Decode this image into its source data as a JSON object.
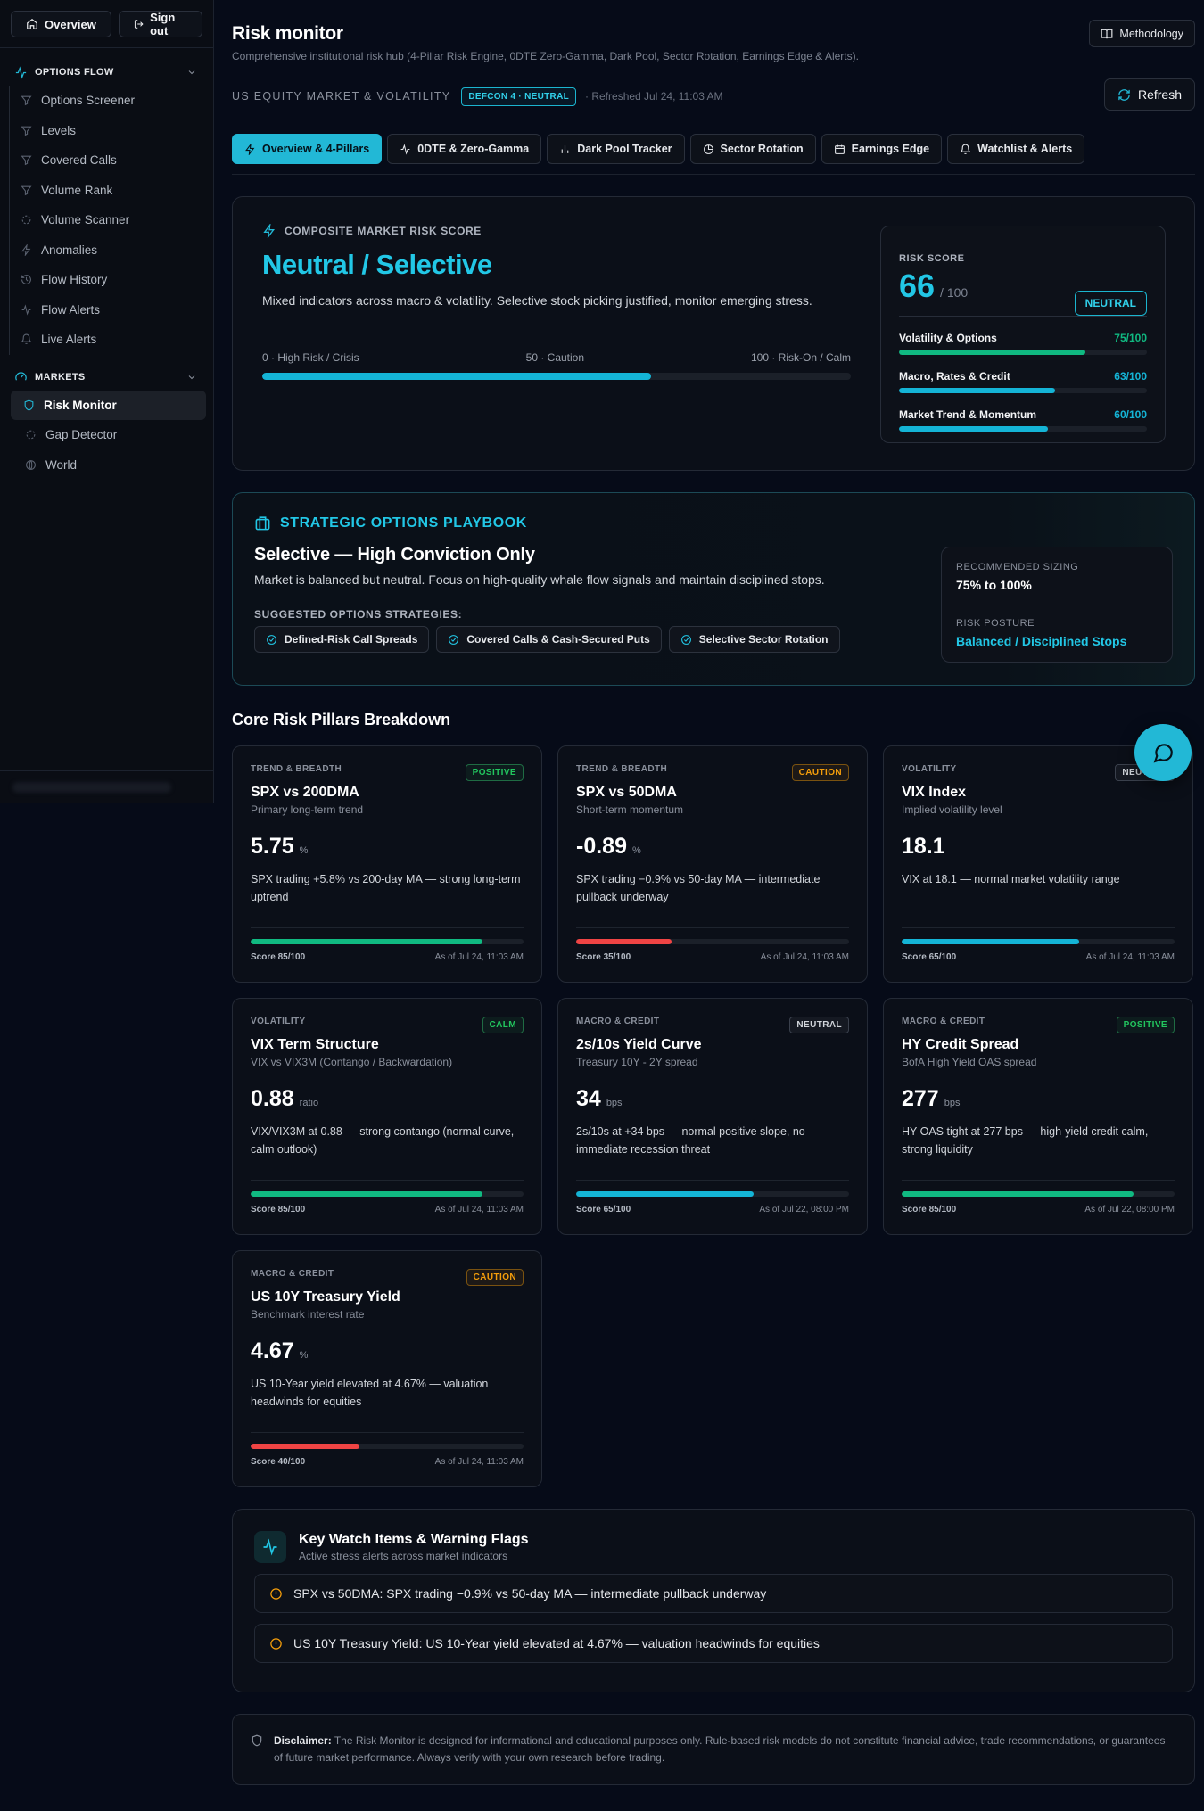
{
  "sidebar": {
    "overview_label": "Overview",
    "signout_label": "Sign out",
    "options_flow": {
      "title": "OPTIONS FLOW",
      "items": [
        "Options Screener",
        "Levels",
        "Covered Calls",
        "Volume Rank",
        "Volume Scanner",
        "Anomalies",
        "Flow History",
        "Flow Alerts",
        "Live Alerts"
      ]
    },
    "markets": {
      "title": "MARKETS",
      "items": [
        "Risk Monitor",
        "Gap Detector",
        "World"
      ],
      "active": "Risk Monitor"
    }
  },
  "header": {
    "title": "Risk monitor",
    "subtitle": "Comprehensive institutional risk hub (4-Pillar Risk Engine, 0DTE Zero-Gamma, Dark Pool, Sector Rotation, Earnings Edge & Alerts).",
    "methodology_label": "Methodology"
  },
  "status": {
    "market_label": "US EQUITY MARKET & VOLATILITY",
    "defcon": "DEFCON 4 · NEUTRAL",
    "refreshed": "· Refreshed Jul 24, 11:03 AM",
    "refresh_label": "Refresh"
  },
  "tabs": [
    {
      "label": "Overview & 4-Pillars",
      "icon": "zap-icon",
      "active": true
    },
    {
      "label": "0DTE & Zero-Gamma",
      "icon": "activity-icon",
      "active": false
    },
    {
      "label": "Dark Pool Tracker",
      "icon": "bar-chart-icon",
      "active": false
    },
    {
      "label": "Sector Rotation",
      "icon": "pie-chart-icon",
      "active": false
    },
    {
      "label": "Earnings Edge",
      "icon": "calendar-icon",
      "active": false
    },
    {
      "label": "Watchlist & Alerts",
      "icon": "bell-icon",
      "active": false
    }
  ],
  "composite": {
    "label": "COMPOSITE MARKET RISK SCORE",
    "title": "Neutral / Selective",
    "description": "Mixed indicators across macro & volatility. Selective stock picking justified, monitor emerging stress.",
    "scale_low": "0 · High Risk / Crisis",
    "scale_mid": "50 · Caution",
    "scale_high": "100 · Risk-On / Calm",
    "score_fraction": 0.66,
    "accent": "#14b4d6",
    "risk_score_label": "RISK SCORE",
    "score": "66",
    "score_denom": "/ 100",
    "badge": "NEUTRAL",
    "subscores": [
      {
        "label": "Volatility & Options",
        "value": "75/100",
        "fraction": 0.75,
        "color": "#10b981"
      },
      {
        "label": "Macro, Rates & Credit",
        "value": "63/100",
        "fraction": 0.63,
        "color": "#14b4d6"
      },
      {
        "label": "Market Trend & Momentum",
        "value": "60/100",
        "fraction": 0.6,
        "color": "#14b4d6"
      }
    ]
  },
  "playbook": {
    "label": "STRATEGIC OPTIONS PLAYBOOK",
    "title": "Selective — High Conviction Only",
    "description": "Market is balanced but neutral. Focus on high-quality whale flow signals and maintain disciplined stops.",
    "strategies_label": "SUGGESTED OPTIONS STRATEGIES:",
    "strategies": [
      "Defined-Risk Call Spreads",
      "Covered Calls & Cash-Secured Puts",
      "Selective Sector Rotation"
    ],
    "sizing_label": "RECOMMENDED SIZING",
    "sizing_value": "75% to 100%",
    "posture_label": "RISK POSTURE",
    "posture_value": "Balanced / Disciplined Stops"
  },
  "pillars": {
    "title": "Core Risk Pillars Breakdown",
    "cards": [
      {
        "category": "TREND & BREADTH",
        "badge": "POSITIVE",
        "badge_type": "positive",
        "title": "SPX vs 200DMA",
        "subtitle": "Primary long-term trend",
        "value": "5.75",
        "unit": "%",
        "description": "SPX trading +5.8% vs 200-day MA — strong long-term uptrend",
        "score_text": "Score 85/100",
        "score": 0.85,
        "color": "#10b981",
        "asof": "As of Jul 24, 11:03 AM"
      },
      {
        "category": "TREND & BREADTH",
        "badge": "CAUTION",
        "badge_type": "caution",
        "title": "SPX vs 50DMA",
        "subtitle": "Short-term momentum",
        "value": "-0.89",
        "unit": "%",
        "description": "SPX trading −0.9% vs 50-day MA — intermediate pullback underway",
        "score_text": "Score 35/100",
        "score": 0.35,
        "color": "#ef4444",
        "asof": "As of Jul 24, 11:03 AM"
      },
      {
        "category": "VOLATILITY",
        "badge": "NEUTRAL",
        "badge_type": "neutral",
        "title": "VIX Index",
        "subtitle": "Implied volatility level",
        "value": "18.1",
        "unit": "",
        "description": "VIX at 18.1 — normal market volatility range",
        "score_text": "Score 65/100",
        "score": 0.65,
        "color": "#14b4d6",
        "asof": "As of Jul 24, 11:03 AM"
      },
      {
        "category": "VOLATILITY",
        "badge": "CALM",
        "badge_type": "calm",
        "title": "VIX Term Structure",
        "subtitle": "VIX vs VIX3M (Contango / Backwardation)",
        "value": "0.88",
        "unit": "ratio",
        "description": "VIX/VIX3M at 0.88 — strong contango (normal curve, calm outlook)",
        "score_text": "Score 85/100",
        "score": 0.85,
        "color": "#10b981",
        "asof": "As of Jul 24, 11:03 AM"
      },
      {
        "category": "MACRO & CREDIT",
        "badge": "NEUTRAL",
        "badge_type": "neutral",
        "title": "2s/10s Yield Curve",
        "subtitle": "Treasury 10Y - 2Y spread",
        "value": "34",
        "unit": "bps",
        "description": "2s/10s at +34 bps — normal positive slope, no immediate recession threat",
        "score_text": "Score 65/100",
        "score": 0.65,
        "color": "#14b4d6",
        "asof": "As of Jul 22, 08:00 PM"
      },
      {
        "category": "MACRO & CREDIT",
        "badge": "POSITIVE",
        "badge_type": "positive",
        "title": "HY Credit Spread",
        "subtitle": "BofA High Yield OAS spread",
        "value": "277",
        "unit": "bps",
        "description": "HY OAS tight at 277 bps — high-yield credit calm, strong liquidity",
        "score_text": "Score 85/100",
        "score": 0.85,
        "color": "#10b981",
        "asof": "As of Jul 22, 08:00 PM"
      },
      {
        "category": "MACRO & CREDIT",
        "badge": "CAUTION",
        "badge_type": "caution",
        "title": "US 10Y Treasury Yield",
        "subtitle": "Benchmark interest rate",
        "value": "4.67",
        "unit": "%",
        "description": "US 10-Year yield elevated at 4.67% — valuation headwinds for equities",
        "score_text": "Score 40/100",
        "score": 0.4,
        "color": "#ef4444",
        "asof": "As of Jul 24, 11:03 AM"
      }
    ]
  },
  "watch": {
    "title": "Key Watch Items & Warning Flags",
    "subtitle": "Active stress alerts across market indicators",
    "items": [
      "SPX vs 50DMA: SPX trading −0.9% vs 50-day MA — intermediate pullback underway",
      "US 10Y Treasury Yield: US 10-Year yield elevated at 4.67% — valuation headwinds for equities"
    ]
  },
  "disclaimer": {
    "label": "Disclaimer:",
    "text": " The Risk Monitor is designed for informational and educational purposes only. Rule-based risk models do not constitute financial advice, trade recommendations, or guarantees of future market performance. Always verify with your own research before trading."
  }
}
